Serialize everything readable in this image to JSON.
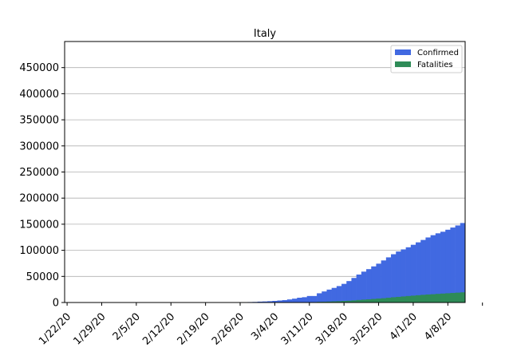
{
  "chart_data": {
    "type": "bar",
    "title": "Italy",
    "xlabel": "",
    "ylabel": "",
    "ylim": [
      0,
      500000
    ],
    "yticks": [
      0,
      50000,
      100000,
      150000,
      200000,
      250000,
      300000,
      350000,
      400000,
      450000
    ],
    "ytick_labels": [
      "0",
      "50000",
      "100000",
      "150000",
      "200000",
      "250000",
      "300000",
      "350000",
      "400000",
      "450000"
    ],
    "xtick_labels": [
      "1/22/20",
      "1/29/20",
      "2/5/20",
      "2/12/20",
      "2/19/20",
      "2/26/20",
      "3/4/20",
      "3/11/20",
      "3/18/20",
      "3/25/20",
      "4/1/20",
      "4/8/20"
    ],
    "grid": "horizontal",
    "legend_position": "top-right",
    "stacked_overlay": true,
    "x": [
      "1/22/20",
      "1/23/20",
      "1/24/20",
      "1/25/20",
      "1/26/20",
      "1/27/20",
      "1/28/20",
      "1/29/20",
      "1/30/20",
      "1/31/20",
      "2/1/20",
      "2/2/20",
      "2/3/20",
      "2/4/20",
      "2/5/20",
      "2/6/20",
      "2/7/20",
      "2/8/20",
      "2/9/20",
      "2/10/20",
      "2/11/20",
      "2/12/20",
      "2/13/20",
      "2/14/20",
      "2/15/20",
      "2/16/20",
      "2/17/20",
      "2/18/20",
      "2/19/20",
      "2/20/20",
      "2/21/20",
      "2/22/20",
      "2/23/20",
      "2/24/20",
      "2/25/20",
      "2/26/20",
      "2/27/20",
      "2/28/20",
      "2/29/20",
      "3/1/20",
      "3/2/20",
      "3/3/20",
      "3/4/20",
      "3/5/20",
      "3/6/20",
      "3/7/20",
      "3/8/20",
      "3/9/20",
      "3/10/20",
      "3/11/20",
      "3/12/20",
      "3/13/20",
      "3/14/20",
      "3/15/20",
      "3/16/20",
      "3/17/20",
      "3/18/20",
      "3/19/20",
      "3/20/20",
      "3/21/20",
      "3/22/20",
      "3/23/20",
      "3/24/20",
      "3/25/20",
      "3/26/20",
      "3/27/20",
      "3/28/20",
      "3/29/20",
      "3/30/20",
      "3/31/20",
      "4/1/20",
      "4/2/20",
      "4/3/20",
      "4/4/20",
      "4/5/20",
      "4/6/20",
      "4/7/20",
      "4/8/20",
      "4/9/20",
      "4/10/20",
      "4/11/20"
    ],
    "series": [
      {
        "name": "Confirmed",
        "color": "#4169e1",
        "values": [
          0,
          0,
          0,
          0,
          0,
          0,
          0,
          0,
          0,
          2,
          2,
          2,
          2,
          2,
          2,
          2,
          3,
          3,
          3,
          3,
          3,
          3,
          3,
          3,
          3,
          3,
          3,
          3,
          3,
          3,
          20,
          62,
          155,
          229,
          322,
          453,
          655,
          888,
          1128,
          1694,
          2036,
          2502,
          3089,
          3858,
          4636,
          5883,
          7375,
          9172,
          10149,
          12462,
          12462,
          17660,
          21157,
          24747,
          27980,
          31506,
          35713,
          41035,
          47021,
          53578,
          59138,
          63927,
          69176,
          74386,
          80589,
          86498,
          92472,
          97689,
          101739,
          105792,
          110574,
          115242,
          119827,
          124632,
          128948,
          132547,
          135586,
          139422,
          143626,
          147577,
          152271
        ]
      },
      {
        "name": "Fatalities",
        "color": "#2e8b57",
        "values": [
          0,
          0,
          0,
          0,
          0,
          0,
          0,
          0,
          0,
          0,
          0,
          0,
          0,
          0,
          0,
          0,
          0,
          0,
          0,
          0,
          0,
          0,
          0,
          0,
          0,
          0,
          0,
          0,
          0,
          0,
          1,
          2,
          3,
          7,
          10,
          12,
          17,
          21,
          29,
          34,
          52,
          79,
          107,
          148,
          197,
          233,
          366,
          463,
          631,
          827,
          827,
          1266,
          1441,
          1809,
          2158,
          2503,
          2978,
          3405,
          4032,
          4825,
          5476,
          6077,
          6820,
          7503,
          8215,
          9134,
          10023,
          10779,
          11591,
          12428,
          13155,
          13915,
          14681,
          15362,
          15887,
          16523,
          17127,
          17669,
          18279,
          18849,
          19468
        ]
      }
    ]
  }
}
